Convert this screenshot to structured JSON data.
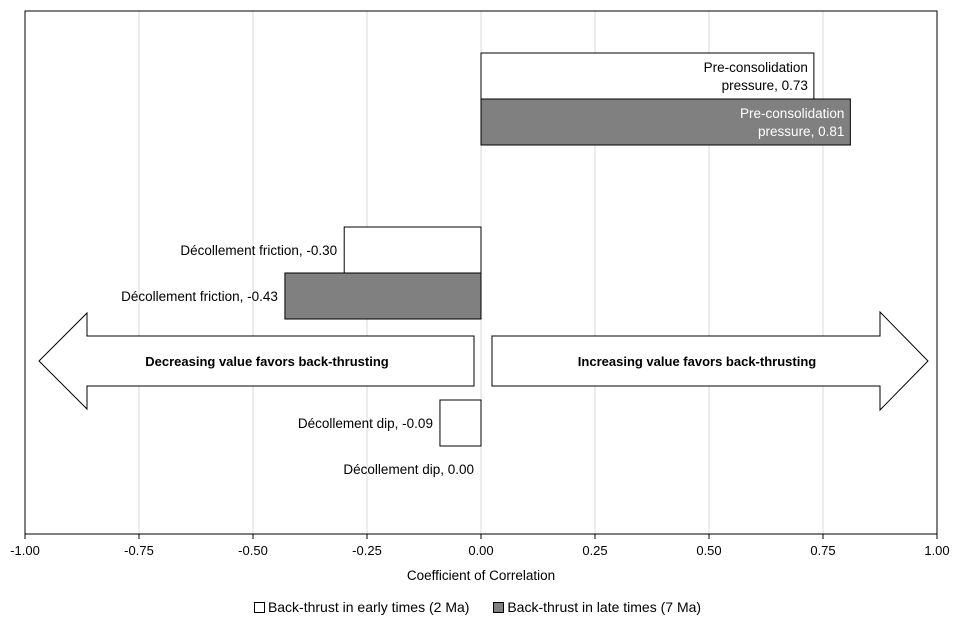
{
  "chart_data": {
    "type": "bar",
    "orientation": "horizontal",
    "xlabel": "Coefficient of Correlation",
    "xlim": [
      -1.0,
      1.0
    ],
    "xticks": [
      "-1.00",
      "-0.75",
      "-0.50",
      "-0.25",
      "0.00",
      "0.25",
      "0.50",
      "0.75",
      "1.00"
    ],
    "grid": "vertical",
    "legend_position": "bottom",
    "categories": [
      "Pre-consolidation pressure",
      "Décollement friction",
      "Décollement dip"
    ],
    "series": [
      {
        "name": "Back-thrust in early times (2 Ma)",
        "color": "#ffffff",
        "values": [
          0.73,
          -0.3,
          -0.09
        ],
        "labels": [
          [
            "Pre-consolidation",
            "pressure, 0.73"
          ],
          [
            "Décollement friction, -0.30"
          ],
          [
            "Décollement dip, -0.09"
          ]
        ]
      },
      {
        "name": "Back-thrust in late times (7 Ma)",
        "color": "#808080",
        "values": [
          0.81,
          -0.43,
          0.0
        ],
        "labels": [
          [
            "Pre-consolidation",
            "pressure, 0.81"
          ],
          [
            "Décollement friction, -0.43"
          ],
          [
            "Décollement dip, 0.00"
          ]
        ]
      }
    ],
    "annotations": {
      "left_arrow": "Decreasing value favors back-thrusting",
      "right_arrow": "Increasing value favors back-thrusting"
    }
  }
}
